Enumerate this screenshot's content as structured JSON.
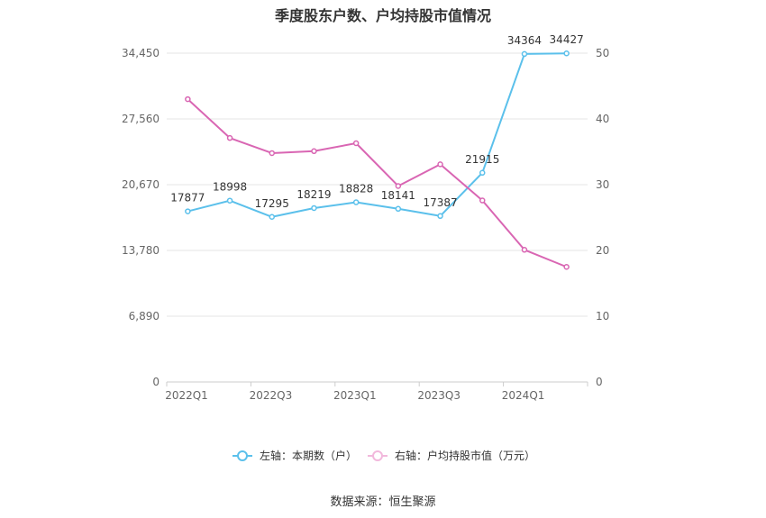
{
  "title": "季度股东户数、户均持股市值情况",
  "source": "数据来源：恒生聚源",
  "chart_data": {
    "type": "line",
    "x": [
      "2022Q1",
      "2022Q2",
      "2022Q3",
      "2022Q4",
      "2023Q1",
      "2023Q2",
      "2023Q3",
      "2023Q4",
      "2024Q1",
      "2024Q2"
    ],
    "x_tick_labels": [
      "2022Q1",
      "2022Q3",
      "2023Q1",
      "2023Q3",
      "2024Q1"
    ],
    "left_axis": {
      "ticks": [
        "0",
        "6,890",
        "13,780",
        "20,670",
        "27,560",
        "34,450"
      ],
      "ylim": [
        0,
        34450
      ]
    },
    "right_axis": {
      "ticks": [
        "0",
        "10",
        "20",
        "30",
        "40",
        "50"
      ],
      "ylim": [
        0,
        50
      ]
    },
    "grid": true,
    "legend_position": "bottom",
    "series": [
      {
        "name": "左轴：本期数（户）",
        "axis": "left",
        "color": "#5BC0EB",
        "values": [
          17877,
          18998,
          17295,
          18219,
          18828,
          18141,
          17387,
          21915,
          34364,
          34427
        ],
        "labels": [
          "17877",
          "18998",
          "17295",
          "18219",
          "18828",
          "18141",
          "17387",
          "21915",
          "34364",
          "34427"
        ]
      },
      {
        "name": "右轴：户均持股市值（万元）",
        "axis": "right",
        "color": "#D966B3",
        "values": [
          43.0,
          37.1,
          34.8,
          35.1,
          36.3,
          29.8,
          33.1,
          27.6,
          20.1,
          17.5
        ]
      }
    ]
  }
}
